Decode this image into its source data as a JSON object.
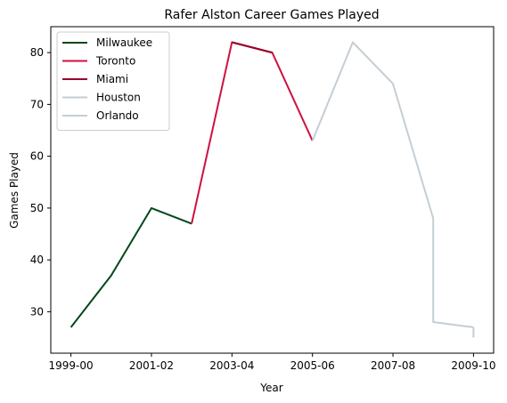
{
  "chart_data": {
    "type": "line",
    "title": "Rafer Alston Career Games Played",
    "xlabel": "Year",
    "ylabel": "Games Played",
    "x": [
      "1999-00",
      "2000-01",
      "2001-02",
      "2002-03",
      "2003-04",
      "2004-05",
      "2005-06",
      "2006-07",
      "2007-08",
      "2008-09",
      "2009-10"
    ],
    "xtick_labels": [
      "1999-00",
      "2001-02",
      "2003-04",
      "2005-06",
      "2007-08",
      "2009-10"
    ],
    "ylim": [
      22,
      85
    ],
    "xlim": [
      -0.5,
      10.5
    ],
    "yticks": [
      30,
      40,
      50,
      60,
      70,
      80
    ],
    "grid": false,
    "legend_position": "upper left",
    "series": [
      {
        "name": "Milwaukee",
        "color": "#00471b",
        "points": [
          [
            0,
            27
          ],
          [
            1,
            37
          ],
          [
            2,
            50
          ],
          [
            3,
            47
          ]
        ]
      },
      {
        "name": "Toronto",
        "color": "#ce1141",
        "points": [
          [
            3,
            47
          ],
          [
            4,
            82
          ],
          [
            5,
            80
          ],
          [
            6,
            63
          ]
        ]
      },
      {
        "name": "Miami",
        "color": "#98002e",
        "points": [
          [
            4,
            82
          ],
          [
            5,
            80
          ]
        ]
      },
      {
        "name": "Houston",
        "color": "#c4ced4",
        "points": [
          [
            6,
            63
          ],
          [
            7,
            82
          ],
          [
            8,
            74
          ],
          [
            9,
            48
          ],
          [
            9,
            28
          ],
          [
            10,
            27
          ]
        ]
      },
      {
        "name": "Orlando",
        "color": "#c4ced4",
        "points": [
          [
            10,
            27
          ],
          [
            10,
            25
          ]
        ]
      }
    ]
  }
}
